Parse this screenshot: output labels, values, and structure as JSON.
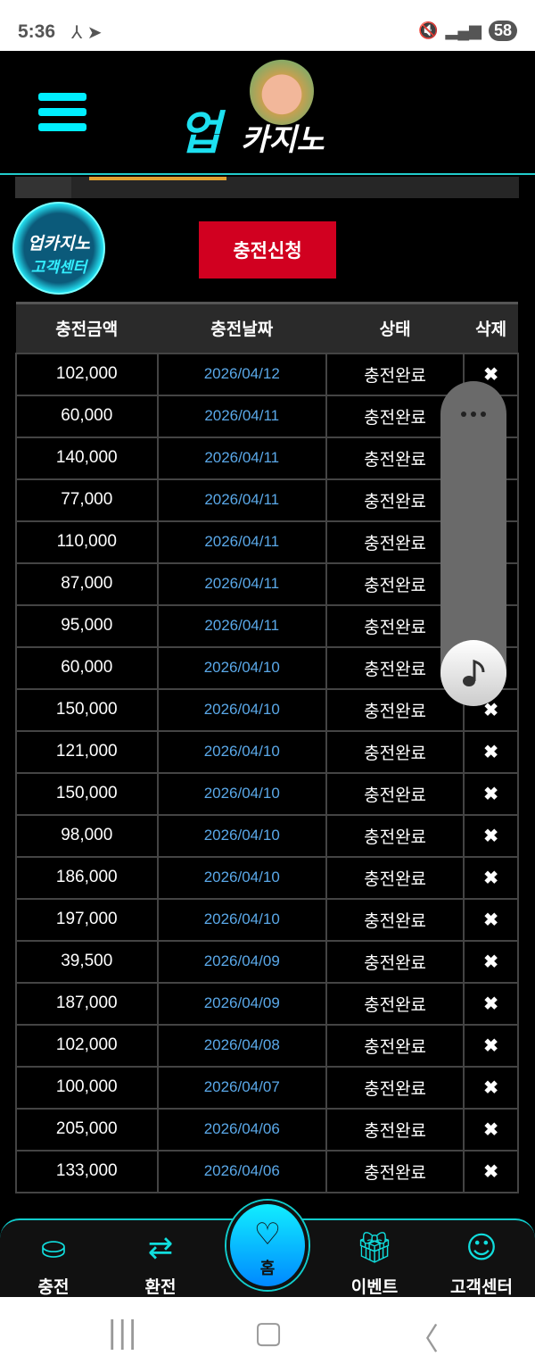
{
  "status": {
    "time": "5:36",
    "battery": "58"
  },
  "header": {
    "logo_up": "업",
    "logo_text": "카지노"
  },
  "apply_button": "충전신청",
  "table": {
    "headers": [
      "충전금액",
      "충전날짜",
      "상태",
      "삭제"
    ],
    "rows": [
      [
        "102,000",
        "2026/04/12",
        "충전완료"
      ],
      [
        "60,000",
        "2026/04/11",
        "충전완료"
      ],
      [
        "140,000",
        "2026/04/11",
        "충전완료"
      ],
      [
        "77,000",
        "2026/04/11",
        "충전완료"
      ],
      [
        "110,000",
        "2026/04/11",
        "충전완료"
      ],
      [
        "87,000",
        "2026/04/11",
        "충전완료"
      ],
      [
        "95,000",
        "2026/04/11",
        "충전완료"
      ],
      [
        "60,000",
        "2026/04/10",
        "충전완료"
      ],
      [
        "150,000",
        "2026/04/10",
        "충전완료"
      ],
      [
        "121,000",
        "2026/04/10",
        "충전완료"
      ],
      [
        "150,000",
        "2026/04/10",
        "충전완료"
      ],
      [
        "98,000",
        "2026/04/10",
        "충전완료"
      ],
      [
        "186,000",
        "2026/04/10",
        "충전완료"
      ],
      [
        "197,000",
        "2026/04/10",
        "충전완료"
      ],
      [
        "39,500",
        "2026/04/09",
        "충전완료"
      ],
      [
        "187,000",
        "2026/04/09",
        "충전완료"
      ],
      [
        "102,000",
        "2026/04/08",
        "충전완료"
      ],
      [
        "100,000",
        "2026/04/07",
        "충전완료"
      ],
      [
        "205,000",
        "2026/04/06",
        "충전완료"
      ],
      [
        "133,000",
        "2026/04/06",
        "충전완료"
      ]
    ],
    "delete_symbol": "✖"
  },
  "cs_badge": {
    "line1": "업카지노",
    "line2": "고객센터"
  },
  "nav": {
    "items": [
      {
        "label": "충전",
        "icon": "charge-icon"
      },
      {
        "label": "환전",
        "icon": "exchange-icon"
      },
      {
        "label": "홈",
        "icon": "home-heart-icon"
      },
      {
        "label": "이벤트",
        "icon": "gift-icon"
      },
      {
        "label": "고객센터",
        "icon": "support-icon"
      }
    ]
  }
}
